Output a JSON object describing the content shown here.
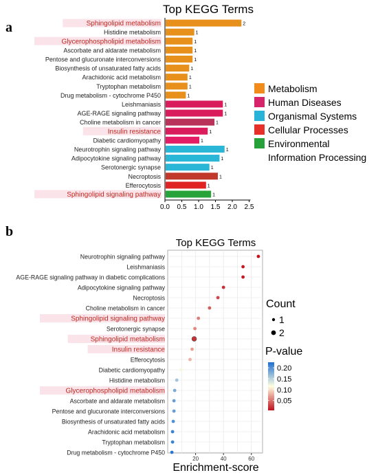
{
  "panels": {
    "a": {
      "letter": "a"
    },
    "b": {
      "letter": "b"
    }
  },
  "chart_data": [
    {
      "type": "bar",
      "orientation": "horizontal",
      "title": "Top KEGG Terms",
      "xlim": [
        0,
        2.5
      ],
      "xticks": [
        "0.0",
        "0.5",
        "1.0",
        "1.5",
        "2.0",
        "2.5"
      ],
      "categories": [
        "Sphingolipid metabolism",
        "Histidine metabolism",
        "Glycerophospholipid metabolism",
        "Ascorbate and aldarate metabolism",
        "Pentose and glucuronate interconversions",
        "Biosynthesis of unsaturated fatty acids",
        "Arachidonic acid metabolism",
        "Tryptophan metabolism",
        "Drug metabolism - cytochrome P450",
        "Leishmaniasis",
        "AGE-RAGE signaling pathway",
        "Choline metabolism in cancer",
        "Insulin resistance",
        "Diabetic cardiomyopathy",
        "Neurotrophin signaling pathway",
        "Adipocytokine signaling pathway",
        "Serotonergic synapse",
        "Necroptosis",
        "Efferocytosis",
        "Sphingolipid signaling pathway"
      ],
      "values": [
        2.25,
        0.85,
        0.8,
        0.8,
        0.8,
        0.7,
        0.65,
        0.65,
        0.6,
        1.7,
        1.7,
        1.45,
        1.25,
        1.0,
        1.75,
        1.6,
        1.3,
        1.55,
        1.2,
        1.35
      ],
      "counts": [
        "2",
        "1",
        "1",
        "1",
        "1",
        "1",
        "1",
        "1",
        "1",
        "1",
        "1",
        "1",
        "1",
        "1",
        "1",
        "1",
        "1",
        "1",
        "1",
        "1"
      ],
      "groups": [
        "Metabolism",
        "Metabolism",
        "Metabolism",
        "Metabolism",
        "Metabolism",
        "Metabolism",
        "Metabolism",
        "Metabolism",
        "Metabolism",
        "Human Diseases",
        "Human Diseases",
        "Human Diseases",
        "Human Diseases",
        "Human Diseases",
        "Organismal Systems",
        "Organismal Systems",
        "Organismal Systems",
        "Cellular Processes",
        "Cellular Processes",
        "Environmental Information Processing"
      ],
      "highlighted": [
        "Sphingolipid metabolism",
        "Glycerophospholipid metabolism",
        "Insulin resistance",
        "Sphingolipid signaling pathway"
      ],
      "bar_colors": [
        "#e8901c",
        "#e8901c",
        "#e8901c",
        "#e8901c",
        "#e8901c",
        "#e8901c",
        "#e8901c",
        "#e8901c",
        "#e8901c",
        "#d91c5c",
        "#d91c5c",
        "#b8325a",
        "#d91c5c",
        "#e31c65",
        "#2ab6d6",
        "#2ab6d6",
        "#2ab6d6",
        "#c0392b",
        "#e02424",
        "#27a33a"
      ],
      "legend": [
        {
          "name": "Metabolism",
          "color": "#f18b1c"
        },
        {
          "name": "Human Diseases",
          "color": "#d6236a"
        },
        {
          "name": "Organismal Systems",
          "color": "#29b3d9"
        },
        {
          "name": "Cellular Processes",
          "color": "#e8302b"
        },
        {
          "name": "Environmental",
          "name2": "Information Processing",
          "color": "#27a23a"
        }
      ],
      "legend_position": "right"
    },
    {
      "type": "scatter",
      "title": "Top KEGG Terms",
      "xlabel": "Enrichment-score",
      "xlim": [
        0,
        68
      ],
      "xticks": [
        20,
        40,
        60
      ],
      "grid": true,
      "categories": [
        "Neurotrophin signaling pathway",
        "Leishmaniasis",
        "AGE-RAGE signaling pathway in diabetic complications",
        "Adipocytokine signaling pathway",
        "Necroptosis",
        "Choline metabolism in cancer",
        "Sphingolipid signaling pathway",
        "Serotonergic synapse",
        "Sphingolipid metabolism",
        "Insulin resistance",
        "Efferocytosis",
        "Diabetic cardiomyopathy",
        "Histidine metabolism",
        "Glycerophospholipid metabolism",
        "Ascorbate and aldarate metabolism",
        "Pentose and glucuronate interconversions",
        "Biosynthesis of unsaturated fatty acids",
        "Arachidonic acid metabolism",
        "Tryptophan metabolism",
        "Drug metabolism - cytochrome P450"
      ],
      "x": [
        65,
        54,
        54,
        40,
        36,
        30,
        22,
        19.5,
        19,
        17.5,
        16,
        9.5,
        6.5,
        5,
        4.5,
        4.5,
        4,
        3.5,
        3.5,
        3
      ],
      "count": [
        1,
        1,
        1,
        1,
        1,
        1,
        1,
        1,
        2,
        1,
        1,
        1,
        1,
        1,
        1,
        1,
        1,
        1,
        1,
        1
      ],
      "p_value": [
        0.006,
        0.01,
        0.01,
        0.02,
        0.03,
        0.04,
        0.055,
        0.06,
        0.02,
        0.07,
        0.08,
        0.12,
        0.16,
        0.18,
        0.19,
        0.19,
        0.2,
        0.21,
        0.21,
        0.22
      ],
      "highlighted": [
        "Sphingolipid signaling pathway",
        "Sphingolipid metabolism",
        "Insulin resistance",
        "Glycerophospholipid metabolism"
      ],
      "legend": {
        "count_title": "Count",
        "count_items": [
          "1",
          "2"
        ],
        "color_title": "P-value",
        "color_ticks": [
          "0.20",
          "0.15",
          "0.10",
          "0.05"
        ],
        "color_tick_values": [
          0.2,
          0.15,
          0.1,
          0.05
        ],
        "color_range": [
          0.005,
          0.225
        ],
        "colors": [
          "#1f6fd1",
          "#ffffe0",
          "#c0101c"
        ]
      },
      "legend_position": "right"
    }
  ]
}
